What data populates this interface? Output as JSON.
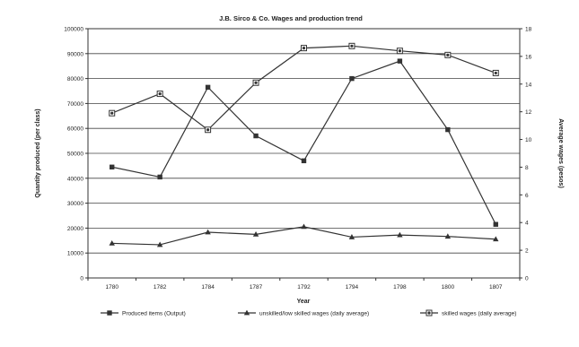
{
  "chart_data": {
    "type": "line",
    "title": "J.B. Sirco & Co. Wages and production trend",
    "xlabel": "Year",
    "ylabel_left": "Quantity produced (per class)",
    "ylabel_right": "Average wages (pesos)",
    "categories": [
      "1780",
      "1782",
      "1784",
      "1787",
      "1792",
      "1794",
      "1798",
      "1800",
      "1807"
    ],
    "y_left": {
      "min": 0,
      "max": 100000,
      "step": 10000,
      "ticks": [
        "0",
        "10000",
        "20000",
        "30000",
        "40000",
        "50000",
        "60000",
        "70000",
        "80000",
        "90000",
        "100000"
      ]
    },
    "y_right": {
      "min": 0,
      "max": 18,
      "step": 2,
      "ticks": [
        "0",
        "2",
        "4",
        "6",
        "8",
        "10",
        "12",
        "14",
        "16",
        "18"
      ]
    },
    "grid": true,
    "legend_position": "bottom",
    "series": [
      {
        "name": "Produced items (Output)",
        "axis": "left",
        "marker": "square",
        "values": [
          44500,
          40500,
          76500,
          57000,
          47000,
          80000,
          87000,
          59500,
          21500
        ]
      },
      {
        "name": "unskilled/low skilled wages (daily average)",
        "axis": "right",
        "marker": "triangle",
        "values": [
          2.5,
          2.4,
          3.3,
          3.15,
          3.7,
          2.95,
          3.1,
          3.0,
          2.8
        ]
      },
      {
        "name": "skilled wages (daily average)",
        "axis": "right",
        "marker": "circle-square",
        "values": [
          11.9,
          13.3,
          10.7,
          14.1,
          16.6,
          16.75,
          16.4,
          16.1,
          14.8
        ]
      }
    ]
  },
  "colors": {
    "line": "#333333",
    "grid": "#444444",
    "background": "#ffffff"
  }
}
